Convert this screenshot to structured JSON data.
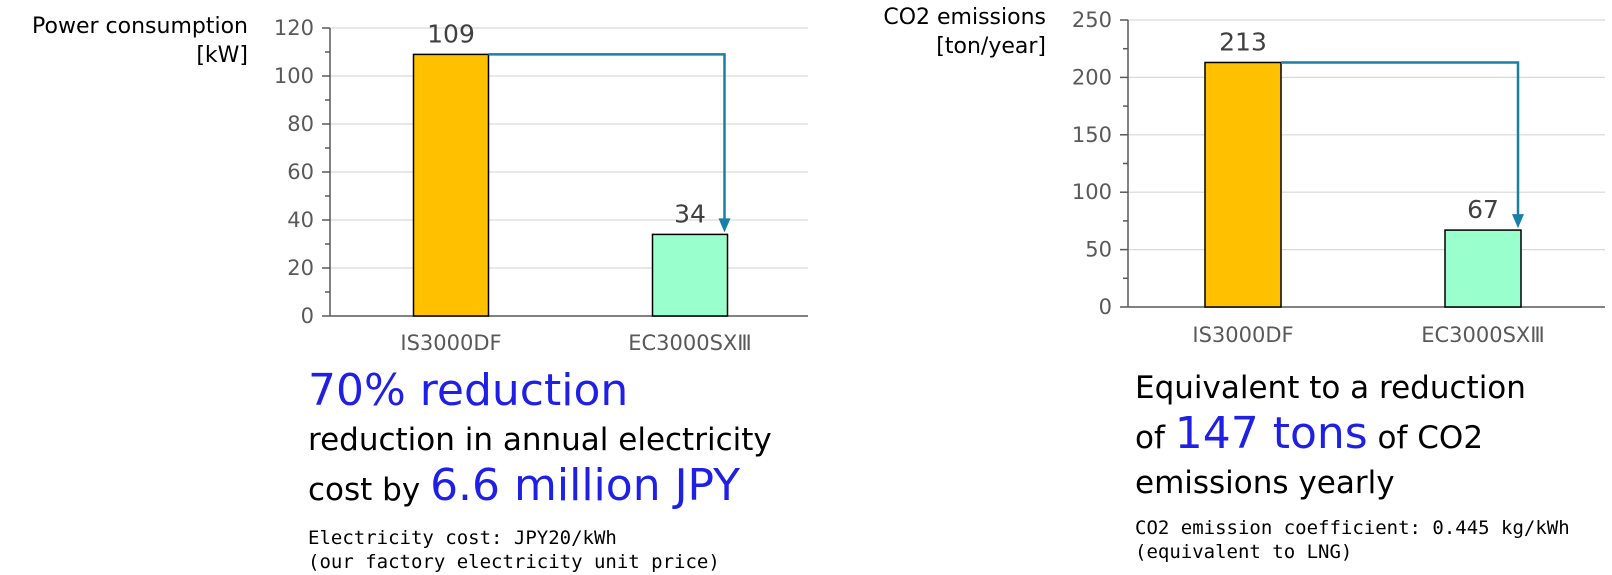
{
  "chart_data": [
    {
      "type": "bar",
      "title": "",
      "ylabel_lines": [
        "Power consumption",
        "[kW]"
      ],
      "xlabel": "",
      "categories": [
        "IS3000DF",
        "EC3000SXⅢ"
      ],
      "values": [
        109,
        34
      ],
      "ylim": [
        0,
        120
      ],
      "yticks": [
        0,
        20,
        40,
        60,
        80,
        100,
        120
      ],
      "data_labels": [
        "109",
        "34"
      ],
      "bar_colors": [
        "#ffc000",
        "#99ffcc"
      ],
      "arrow_color": "#1a7fa6",
      "grid": true,
      "legend": "none"
    },
    {
      "type": "bar",
      "title": "",
      "ylabel_lines": [
        "CO2 emissions",
        "[ton/year]"
      ],
      "xlabel": "",
      "categories": [
        "IS3000DF",
        "EC3000SXⅢ"
      ],
      "values": [
        213,
        67
      ],
      "ylim": [
        0,
        250
      ],
      "yticks": [
        0,
        50,
        100,
        150,
        200,
        250
      ],
      "data_labels": [
        "213",
        "67"
      ],
      "bar_colors": [
        "#ffc000",
        "#99ffcc"
      ],
      "arrow_color": "#1a7fa6",
      "grid": true,
      "legend": "none"
    }
  ],
  "left_caption": {
    "highlight": "70% reduction",
    "line2": "reduction in annual electricity",
    "line3_pre": "cost by ",
    "line3_highlight": "6.6 million JPY",
    "note_line1": "Electricity cost: JPY20/kWh",
    "note_line2": "(our factory electricity unit price)"
  },
  "right_caption": {
    "line1": "Equivalent to a reduction",
    "line2_pre": "of ",
    "line2_highlight": "147 tons",
    "line2_post": " of CO2",
    "line3": "emissions yearly",
    "note_line1": "CO2 emission coefficient: 0.445 kg/kWh",
    "note_line2": "(equivalent to LNG)"
  },
  "colors": {
    "highlight": "#1f1fe6",
    "grid": "#d9d9d9",
    "axis": "#595959"
  }
}
